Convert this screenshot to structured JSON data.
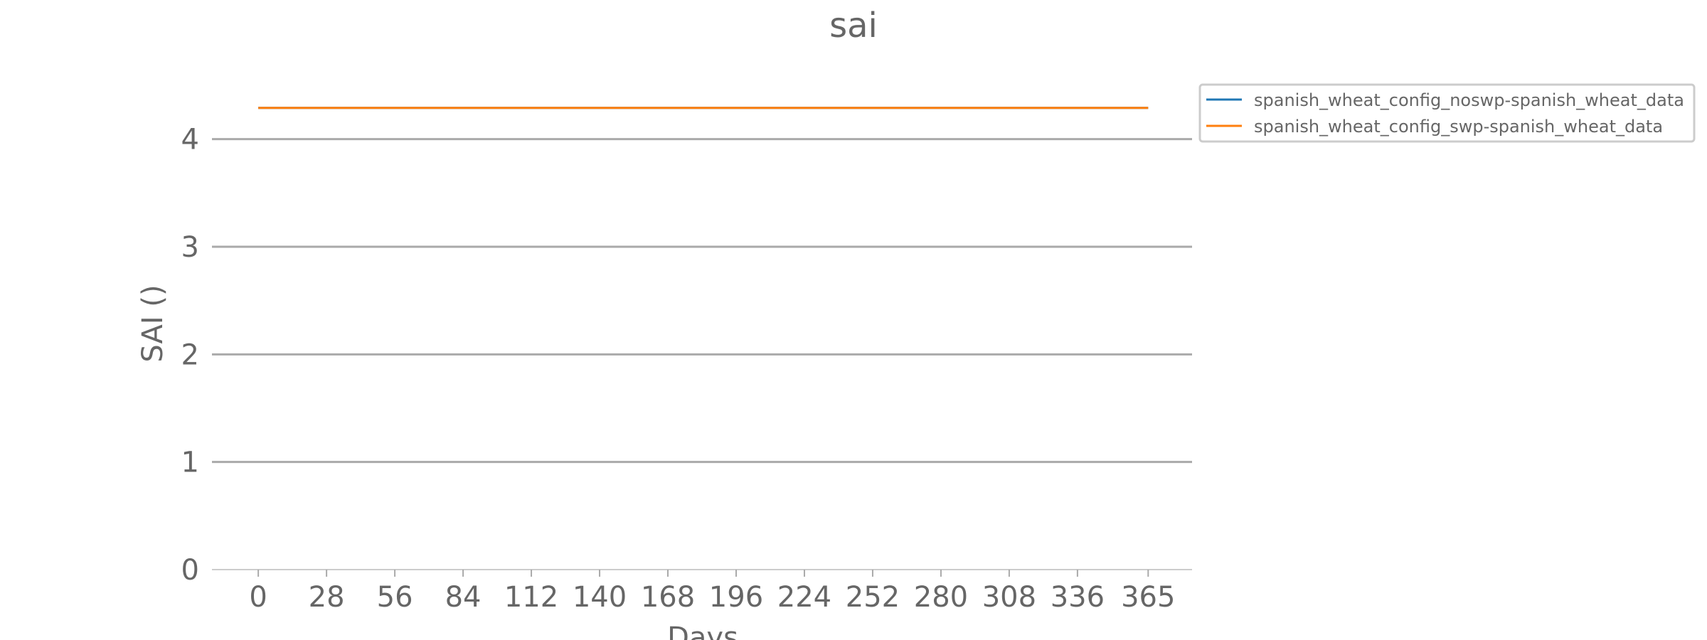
{
  "chart_data": {
    "type": "line",
    "title": "sai",
    "xlabel": "Days",
    "ylabel": "SAI ()",
    "x_ticks": [
      0,
      28,
      56,
      84,
      112,
      140,
      168,
      196,
      224,
      252,
      280,
      308,
      336,
      365
    ],
    "y_ticks": [
      0,
      1,
      2,
      3,
      4
    ],
    "xlim": [
      -19,
      383
    ],
    "ylim": [
      0,
      4.5
    ],
    "grid": "horizontal",
    "legend": {
      "placement": "outside-top-right"
    },
    "series": [
      {
        "name": "spanish_wheat_config_noswp-spanish_wheat_data",
        "color": "#1f77b4",
        "x": [
          0,
          365
        ],
        "y": [
          4.29,
          4.29
        ]
      },
      {
        "name": "spanish_wheat_config_swp-spanish_wheat_data",
        "color": "#ff7f0e",
        "x": [
          0,
          365
        ],
        "y": [
          4.29,
          4.29
        ]
      }
    ]
  }
}
